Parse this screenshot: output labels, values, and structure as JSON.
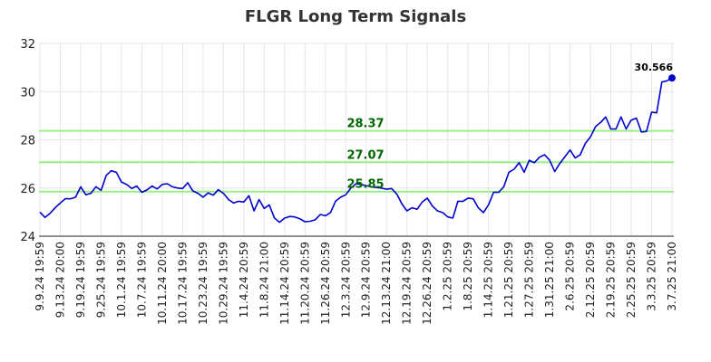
{
  "chart_data": {
    "type": "line",
    "title": "FLGR Long Term Signals",
    "xlabel": "",
    "ylabel": "",
    "ylim": [
      24,
      32
    ],
    "yticks": [
      24,
      26,
      28,
      30,
      32
    ],
    "grid": true,
    "x_tick_labels": [
      "9.9.24 19:59",
      "9.13.24 20:00",
      "9.19.24 19:59",
      "9.25.24 19:59",
      "10.1.24 19:59",
      "10.7.24 19:59",
      "10.11.24 20:00",
      "10.17.24 19:59",
      "10.23.24 19:59",
      "10.29.24 19:59",
      "11.4.24 20:59",
      "11.8.24 21:00",
      "11.14.24 20:59",
      "11.20.24 20:59",
      "11.26.24 20:59",
      "12.3.24 20:59",
      "12.9.24 20:59",
      "12.13.24 21:00",
      "12.19.24 20:59",
      "12.26.24 20:59",
      "1.2.25 20:59",
      "1.8.25 20:59",
      "1.14.25 20:59",
      "1.21.25 20:59",
      "1.27.25 20:59",
      "1.31.25 21:00",
      "2.6.25 20:59",
      "2.12.25 20:59",
      "2.19.25 20:59",
      "2.25.25 20:59",
      "3.3.25 20:59",
      "3.7.25 21:00"
    ],
    "series": [
      {
        "color": "#0000cc",
        "values": [
          25.0,
          24.78,
          24.95,
          25.18,
          25.38,
          25.56,
          25.55,
          25.62,
          26.05,
          25.72,
          25.78,
          26.05,
          25.9,
          26.52,
          26.72,
          26.65,
          26.25,
          26.15,
          25.98,
          26.08,
          25.82,
          25.92,
          26.08,
          25.96,
          26.15,
          26.18,
          26.05,
          26.0,
          25.98,
          26.22,
          25.88,
          25.78,
          25.62,
          25.8,
          25.7,
          25.93,
          25.78,
          25.52,
          25.38,
          25.45,
          25.42,
          25.68,
          25.05,
          25.52,
          25.15,
          25.3,
          24.76,
          24.58,
          24.75,
          24.82,
          24.8,
          24.72,
          24.6,
          24.62,
          24.68,
          24.9,
          24.85,
          24.98,
          25.45,
          25.62,
          25.72,
          26.0,
          26.18,
          26.15,
          26.1,
          26.05,
          26.02,
          26.0,
          25.95,
          25.98,
          25.75,
          25.35,
          25.05,
          25.18,
          25.12,
          25.42,
          25.58,
          25.25,
          25.05,
          24.98,
          24.8,
          24.75,
          25.45,
          25.45,
          25.58,
          25.55,
          25.18,
          24.98,
          25.3,
          25.82,
          25.82,
          26.05,
          26.65,
          26.78,
          27.05,
          26.65,
          27.15,
          27.05,
          27.28,
          27.38,
          27.15,
          26.68,
          27.02,
          27.3,
          27.58,
          27.25,
          27.38,
          27.85,
          28.12,
          28.55,
          28.72,
          28.95,
          28.45,
          28.45,
          28.95,
          28.45,
          28.82,
          28.9,
          28.32,
          28.35,
          29.15,
          29.12,
          30.4,
          30.45,
          30.566
        ]
      }
    ],
    "horizontal_lines": [
      {
        "value": 28.37,
        "label": "28.37",
        "color": "#99ee88",
        "label_color": "#006600"
      },
      {
        "value": 27.07,
        "label": "27.07",
        "color": "#99ee88",
        "label_color": "#006600"
      },
      {
        "value": 25.85,
        "label": "25.85",
        "color": "#99ee88",
        "label_color": "#006600"
      }
    ],
    "last_value_label": "30.566"
  }
}
